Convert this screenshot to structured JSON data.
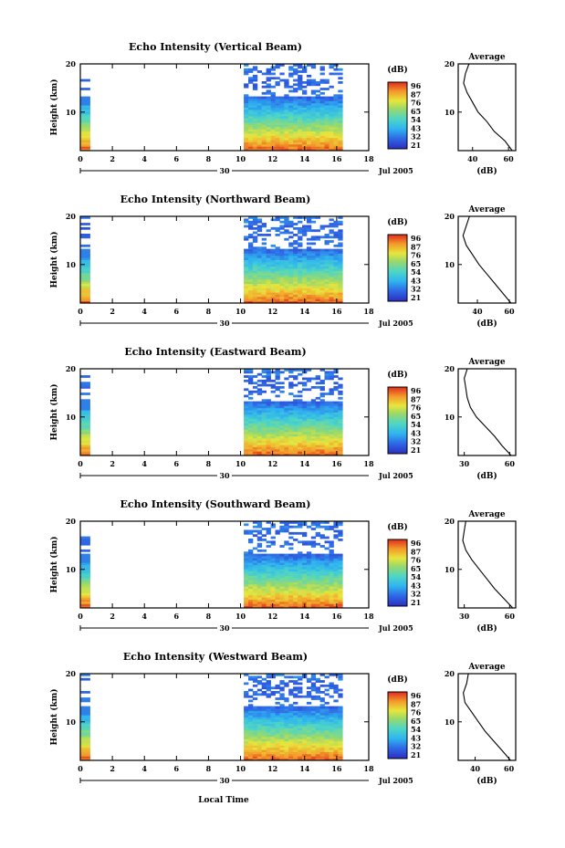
{
  "figure": {
    "xlabel": "Local Time",
    "day_label": "30",
    "month_label": "Jul 2005"
  },
  "chart_data": [
    {
      "type": "heatmap",
      "title": "Echo Intensity (Vertical Beam)",
      "ylabel": "Height (km)",
      "xlim": [
        0,
        18
      ],
      "ylim": [
        2,
        20
      ],
      "xticks": [
        0,
        2,
        4,
        6,
        8,
        10,
        12,
        14,
        16,
        18
      ],
      "yticks": [
        10,
        20
      ],
      "colorbar": {
        "unit": "(dB)",
        "ticks": [
          96,
          87,
          76,
          65,
          54,
          43,
          32,
          21
        ]
      },
      "data_segments": [
        [
          0,
          0.6
        ],
        [
          10.2,
          16.2
        ]
      ],
      "profile": {
        "title": "Average",
        "xlabel": "(dB)",
        "xticks": [
          40,
          60
        ],
        "xlim": [
          32,
          64
        ],
        "ylim": [
          2,
          20
        ],
        "yticks": [
          10,
          20
        ],
        "heights": [
          2,
          4,
          6,
          8,
          10,
          12,
          14,
          16,
          18,
          20
        ],
        "values": [
          62,
          58,
          52,
          48,
          43,
          40,
          37,
          35,
          36,
          38
        ]
      }
    },
    {
      "type": "heatmap",
      "title": "Echo Intensity (Northward Beam)",
      "ylabel": "Height (km)",
      "xlim": [
        0,
        18
      ],
      "ylim": [
        2,
        20
      ],
      "xticks": [
        0,
        2,
        4,
        6,
        8,
        10,
        12,
        14,
        16,
        18
      ],
      "yticks": [
        10,
        20
      ],
      "colorbar": {
        "unit": "(dB)",
        "ticks": [
          96,
          87,
          76,
          65,
          54,
          43,
          32,
          21
        ]
      },
      "data_segments": [
        [
          0,
          0.6
        ],
        [
          10.2,
          16.2
        ]
      ],
      "profile": {
        "title": "Average",
        "xlabel": "(dB)",
        "xticks": [
          40,
          60
        ],
        "xlim": [
          28,
          64
        ],
        "ylim": [
          2,
          20
        ],
        "yticks": [
          10,
          20
        ],
        "heights": [
          2,
          4,
          6,
          8,
          10,
          12,
          14,
          16,
          18,
          20
        ],
        "values": [
          61,
          56,
          51,
          46,
          41,
          37,
          33,
          31,
          33,
          35
        ]
      }
    },
    {
      "type": "heatmap",
      "title": "Echo Intensity (Eastward Beam)",
      "ylabel": "Height (km)",
      "xlim": [
        0,
        18
      ],
      "ylim": [
        2,
        20
      ],
      "xticks": [
        0,
        2,
        4,
        6,
        8,
        10,
        12,
        14,
        16,
        18
      ],
      "yticks": [
        10,
        20
      ],
      "colorbar": {
        "unit": "(dB)",
        "ticks": [
          96,
          87,
          76,
          65,
          54,
          43,
          32,
          21
        ]
      },
      "data_segments": [
        [
          0,
          0.6
        ],
        [
          10.2,
          16.2
        ]
      ],
      "profile": {
        "title": "Average",
        "xlabel": "(dB)",
        "xticks": [
          30,
          60
        ],
        "xlim": [
          26,
          64
        ],
        "ylim": [
          2,
          20
        ],
        "yticks": [
          10,
          20
        ],
        "heights": [
          2,
          4,
          6,
          8,
          10,
          12,
          14,
          16,
          18,
          20
        ],
        "values": [
          61,
          55,
          50,
          44,
          38,
          34,
          32,
          31,
          30,
          32
        ]
      }
    },
    {
      "type": "heatmap",
      "title": "Echo Intensity (Southward Beam)",
      "ylabel": "Height (km)",
      "xlim": [
        0,
        18
      ],
      "ylim": [
        2,
        20
      ],
      "xticks": [
        0,
        2,
        4,
        6,
        8,
        10,
        12,
        14,
        16,
        18
      ],
      "yticks": [
        10,
        20
      ],
      "colorbar": {
        "unit": "(dB)",
        "ticks": [
          96,
          87,
          76,
          65,
          54,
          43,
          32,
          21
        ]
      },
      "data_segments": [
        [
          0,
          0.6
        ],
        [
          10.2,
          16.2
        ]
      ],
      "profile": {
        "title": "Average",
        "xlabel": "(dB)",
        "xticks": [
          30,
          60
        ],
        "xlim": [
          26,
          64
        ],
        "ylim": [
          2,
          20
        ],
        "yticks": [
          10,
          20
        ],
        "heights": [
          2,
          4,
          6,
          8,
          10,
          12,
          14,
          16,
          18,
          20
        ],
        "values": [
          62,
          56,
          50,
          45,
          40,
          35,
          31,
          29,
          30,
          31
        ]
      }
    },
    {
      "type": "heatmap",
      "title": "Echo Intensity (Westward Beam)",
      "ylabel": "Height (km)",
      "xlim": [
        0,
        18
      ],
      "ylim": [
        2,
        20
      ],
      "xticks": [
        0,
        2,
        4,
        6,
        8,
        10,
        12,
        14,
        16,
        18
      ],
      "yticks": [
        10,
        20
      ],
      "colorbar": {
        "unit": "(dB)",
        "ticks": [
          96,
          87,
          76,
          65,
          54,
          43,
          32,
          21
        ]
      },
      "data_segments": [
        [
          0,
          0.6
        ],
        [
          10.2,
          16.2
        ]
      ],
      "profile": {
        "title": "Average",
        "xlabel": "(dB)",
        "xticks": [
          40,
          60
        ],
        "xlim": [
          30,
          64
        ],
        "ylim": [
          2,
          20
        ],
        "yticks": [
          10,
          20
        ],
        "heights": [
          2,
          4,
          6,
          8,
          10,
          12,
          14,
          16,
          18,
          20
        ],
        "values": [
          61,
          56,
          51,
          46,
          42,
          38,
          34,
          33,
          35,
          36
        ]
      }
    }
  ]
}
